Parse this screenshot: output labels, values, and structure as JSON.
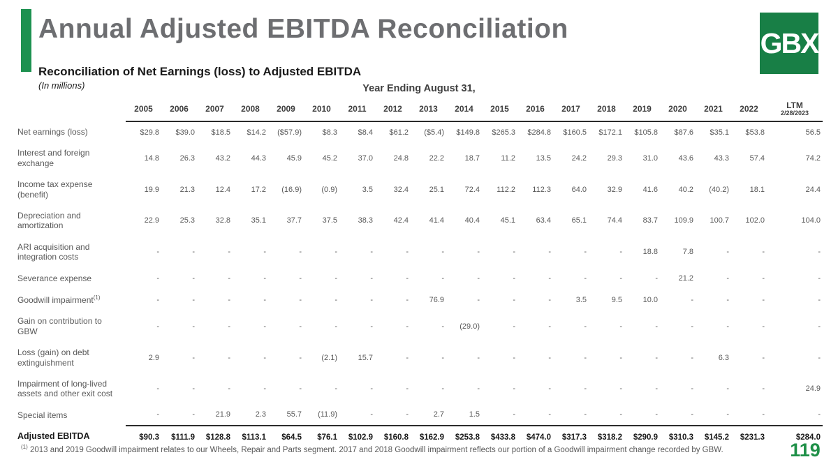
{
  "slide": {
    "title": "Annual Adjusted EBITDA Reconciliation",
    "subtitle": "Reconciliation of Net Earnings (loss) to Adjusted EBITDA",
    "units_note": "(In millions)",
    "table_caption": "Year Ending August 31,",
    "logo_text": "GBX",
    "page_number": "119",
    "footnote_marker": "(1)",
    "footnote_text": " 2013 and 2019 Goodwill impairment relates to our Wheels, Repair and Parts segment.  2017 and 2018 Goodwill impairment reflects our portion of a Goodwill impairment change recorded by GBW."
  },
  "colors": {
    "accent_green": "#1d9150",
    "logo_green": "#187f46",
    "page_number_green": "#1f9048",
    "title_gray": "#6d6e71",
    "body_gray": "#595959"
  },
  "table": {
    "columns": [
      {
        "label": "2005"
      },
      {
        "label": "2006"
      },
      {
        "label": "2007"
      },
      {
        "label": "2008"
      },
      {
        "label": "2009"
      },
      {
        "label": "2010"
      },
      {
        "label": "2011"
      },
      {
        "label": "2012"
      },
      {
        "label": "2013"
      },
      {
        "label": "2014"
      },
      {
        "label": "2015"
      },
      {
        "label": "2016"
      },
      {
        "label": "2017"
      },
      {
        "label": "2018"
      },
      {
        "label": "2019"
      },
      {
        "label": "2020"
      },
      {
        "label": "2021"
      },
      {
        "label": "2022"
      },
      {
        "label": "LTM",
        "sublabel": "2/28/2023"
      }
    ],
    "rows": [
      {
        "label": "Net earnings (loss)",
        "values": [
          "$29.8",
          "$39.0",
          "$18.5",
          "$14.2",
          "($57.9)",
          "$8.3",
          "$8.4",
          "$61.2",
          "($5.4)",
          "$149.8",
          "$265.3",
          "$284.8",
          "$160.5",
          "$172.1",
          "$105.8",
          "$87.6",
          "$35.1",
          "$53.8",
          "56.5"
        ]
      },
      {
        "label": "Interest and foreign exchange",
        "values": [
          "14.8",
          "26.3",
          "43.2",
          "44.3",
          "45.9",
          "45.2",
          "37.0",
          "24.8",
          "22.2",
          "18.7",
          "11.2",
          "13.5",
          "24.2",
          "29.3",
          "31.0",
          "43.6",
          "43.3",
          "57.4",
          "74.2"
        ]
      },
      {
        "label": "Income tax expense (benefit)",
        "values": [
          "19.9",
          "21.3",
          "12.4",
          "17.2",
          "(16.9)",
          "(0.9)",
          "3.5",
          "32.4",
          "25.1",
          "72.4",
          "112.2",
          "112.3",
          "64.0",
          "32.9",
          "41.6",
          "40.2",
          "(40.2)",
          "18.1",
          "24.4"
        ]
      },
      {
        "label": "Depreciation and amortization",
        "values": [
          "22.9",
          "25.3",
          "32.8",
          "35.1",
          "37.7",
          "37.5",
          "38.3",
          "42.4",
          "41.4",
          "40.4",
          "45.1",
          "63.4",
          "65.1",
          "74.4",
          "83.7",
          "109.9",
          "100.7",
          "102.0",
          "104.0"
        ]
      },
      {
        "label": "ARI acquisition and integration costs",
        "values": [
          "-",
          "-",
          "-",
          "-",
          "-",
          "-",
          "-",
          "-",
          "-",
          "-",
          "-",
          "-",
          "-",
          "-",
          "18.8",
          "7.8",
          "-",
          "-",
          "-"
        ]
      },
      {
        "label": "Severance expense",
        "values": [
          "-",
          "-",
          "-",
          "-",
          "-",
          "-",
          "-",
          "-",
          "-",
          "-",
          "-",
          "-",
          "-",
          "-",
          "-",
          "21.2",
          "-",
          "-",
          "-"
        ]
      },
      {
        "label": "Goodwill impairment",
        "sup": "(1)",
        "values": [
          "-",
          "-",
          "-",
          "-",
          "-",
          "-",
          "-",
          "-",
          "76.9",
          "-",
          "-",
          "-",
          "3.5",
          "9.5",
          "10.0",
          "-",
          "-",
          "-",
          "-"
        ]
      },
      {
        "label": "Gain on contribution to GBW",
        "values": [
          "-",
          "-",
          "-",
          "-",
          "-",
          "-",
          "-",
          "-",
          "-",
          "(29.0)",
          "-",
          "-",
          "-",
          "-",
          "-",
          "-",
          "-",
          "-",
          "-"
        ]
      },
      {
        "label": "Loss (gain) on debt extinguishment",
        "values": [
          "2.9",
          "-",
          "-",
          "-",
          "-",
          "(2.1)",
          "15.7",
          "-",
          "-",
          "-",
          "-",
          "-",
          "-",
          "-",
          "-",
          "-",
          "6.3",
          "-",
          "-"
        ]
      },
      {
        "label": "Impairment of long-lived assets and other exit cost",
        "values": [
          "-",
          "-",
          "-",
          "-",
          "-",
          "-",
          "-",
          "-",
          "-",
          "-",
          "-",
          "-",
          "-",
          "-",
          "-",
          "-",
          "-",
          "-",
          "24.9"
        ]
      },
      {
        "label": "Special items",
        "values": [
          "-",
          "-",
          "21.9",
          "2.3",
          "55.7",
          "(11.9)",
          "-",
          "-",
          "2.7",
          "1.5",
          "-",
          "-",
          "-",
          "-",
          "-",
          "-",
          "-",
          "-",
          "-"
        ]
      },
      {
        "label": "Adjusted EBITDA",
        "total": true,
        "values": [
          "$90.3",
          "$111.9",
          "$128.8",
          "$113.1",
          "$64.5",
          "$76.1",
          "$102.9",
          "$160.8",
          "$162.9",
          "$253.8",
          "$433.8",
          "$474.0",
          "$317.3",
          "$318.2",
          "$290.9",
          "$310.3",
          "$145.2",
          "$231.3",
          "$284.0"
        ]
      }
    ]
  }
}
